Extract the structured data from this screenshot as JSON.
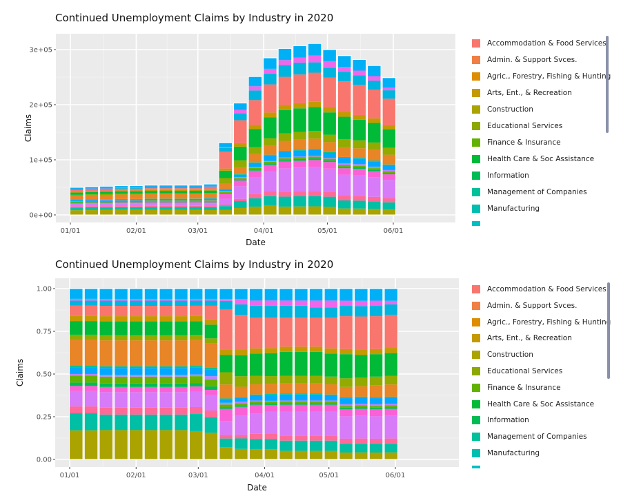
{
  "chart_data": [
    {
      "type": "bar",
      "stacking": "stack",
      "title": "Continued Unemployment Claims by Industry in 2020",
      "xlabel": "Date",
      "ylabel": "Claims",
      "ylim": [
        0,
        325000
      ],
      "yticks": [
        0,
        100000,
        200000,
        300000
      ],
      "ytick_labels": [
        "0e+00",
        "1e+05",
        "2e+05",
        "3e+05"
      ],
      "xticks": [
        "2020-01-01",
        "2020-02-01",
        "2020-03-01",
        "2020-04-01",
        "2020-05-01",
        "2020-06-01"
      ],
      "xtick_labels": [
        "01/01",
        "02/01",
        "03/01",
        "04/01",
        "05/01",
        "06/01"
      ],
      "grid": true,
      "legend_position": "right",
      "totals": [
        50000,
        51000,
        52000,
        53000,
        53000,
        54000,
        54000,
        54000,
        54000,
        56000,
        131000,
        203000,
        251000,
        285000,
        302000,
        307000,
        311000,
        300000,
        289000,
        282000,
        271000,
        249000
      ]
    },
    {
      "type": "bar",
      "stacking": "fill",
      "title": "Continued Unemployment Claims by Industry in 2020",
      "xlabel": "Date",
      "ylabel": "Claims",
      "ylim": [
        0,
        1
      ],
      "yticks": [
        0,
        0.25,
        0.5,
        0.75,
        1
      ],
      "ytick_labels": [
        "0.00",
        "0.25",
        "0.50",
        "0.75",
        "1.00"
      ],
      "xticks": [
        "2020-01-01",
        "2020-02-01",
        "2020-03-01",
        "2020-04-01",
        "2020-05-01",
        "2020-06-01"
      ],
      "xtick_labels": [
        "01/01",
        "02/01",
        "03/01",
        "04/01",
        "05/01",
        "06/01"
      ],
      "grid": true,
      "legend_position": "right"
    }
  ],
  "dates": [
    "2020-01-04",
    "2020-01-11",
    "2020-01-18",
    "2020-01-25",
    "2020-02-01",
    "2020-02-08",
    "2020-02-15",
    "2020-02-22",
    "2020-02-29",
    "2020-03-07",
    "2020-03-14",
    "2020-03-21",
    "2020-03-28",
    "2020-04-04",
    "2020-04-11",
    "2020-04-18",
    "2020-04-25",
    "2020-05-02",
    "2020-05-09",
    "2020-05-16",
    "2020-05-23",
    "2020-05-30"
  ],
  "series_shares": [
    {
      "name": "Construction",
      "color": "#ABA300",
      "values": [
        0.17,
        0.17,
        0.17,
        0.17,
        0.17,
        0.17,
        0.17,
        0.17,
        0.165,
        0.155,
        0.07,
        0.06,
        0.06,
        0.06,
        0.05,
        0.05,
        0.05,
        0.05,
        0.04,
        0.04,
        0.04,
        0.04
      ]
    },
    {
      "name": "Manufacturing",
      "color": "#00BFA5",
      "values": [
        0.1,
        0.1,
        0.09,
        0.09,
        0.09,
        0.09,
        0.09,
        0.09,
        0.1,
        0.09,
        0.05,
        0.06,
        0.06,
        0.06,
        0.06,
        0.06,
        0.06,
        0.06,
        0.05,
        0.05,
        0.05,
        0.05
      ]
    },
    {
      "color": "#FF6A98",
      "values": [
        0.04,
        0.04,
        0.04,
        0.04,
        0.04,
        0.04,
        0.04,
        0.04,
        0.04,
        0.04,
        0.02,
        0.02,
        0.03,
        0.03,
        0.03,
        0.03,
        0.03,
        0.03,
        0.03,
        0.03,
        0.03,
        0.03
      ]
    },
    {
      "color": "#D77BF8",
      "values": [
        0.09,
        0.09,
        0.09,
        0.09,
        0.09,
        0.09,
        0.09,
        0.09,
        0.09,
        0.09,
        0.08,
        0.11,
        0.12,
        0.13,
        0.14,
        0.14,
        0.14,
        0.14,
        0.13,
        0.13,
        0.13,
        0.13
      ]
    },
    {
      "color": "#FB61D7",
      "values": [
        0.03,
        0.03,
        0.03,
        0.03,
        0.03,
        0.03,
        0.03,
        0.03,
        0.03,
        0.03,
        0.07,
        0.05,
        0.05,
        0.04,
        0.04,
        0.04,
        0.04,
        0.04,
        0.04,
        0.04,
        0.04,
        0.04
      ]
    },
    {
      "name": "Information",
      "color": "#00BC56",
      "values": [
        0.02,
        0.02,
        0.02,
        0.02,
        0.02,
        0.02,
        0.02,
        0.02,
        0.02,
        0.02,
        0.01,
        0.01,
        0.01,
        0.01,
        0.01,
        0.01,
        0.01,
        0.01,
        0.01,
        0.01,
        0.01,
        0.01
      ]
    },
    {
      "name": "Finance & Insurance",
      "color": "#64B200",
      "values": [
        0.04,
        0.04,
        0.04,
        0.04,
        0.04,
        0.04,
        0.04,
        0.04,
        0.04,
        0.04,
        0.015,
        0.01,
        0.01,
        0.01,
        0.01,
        0.01,
        0.01,
        0.01,
        0.01,
        0.01,
        0.01,
        0.01
      ]
    },
    {
      "color": "#B983FF",
      "values": [
        0.01,
        0.01,
        0.01,
        0.01,
        0.01,
        0.01,
        0.01,
        0.01,
        0.01,
        0.02,
        0.01,
        0.01,
        0.005,
        0.005,
        0.005,
        0.005,
        0.005,
        0.005,
        0.01,
        0.01,
        0.01,
        0.01
      ]
    },
    {
      "color": "#00A9FF",
      "values": [
        0.04,
        0.04,
        0.04,
        0.04,
        0.04,
        0.04,
        0.04,
        0.04,
        0.04,
        0.04,
        0.02,
        0.02,
        0.03,
        0.035,
        0.035,
        0.035,
        0.035,
        0.03,
        0.035,
        0.035,
        0.035,
        0.035
      ]
    },
    {
      "name": "Management of Companies",
      "color": "#00C19A",
      "values": [
        0.01,
        0.01,
        0.01,
        0.01,
        0.01,
        0.01,
        0.01,
        0.01,
        0.01,
        0.01,
        0.005,
        0.005,
        0.005,
        0.005,
        0.005,
        0.005,
        0.005,
        0.005,
        0.005,
        0.005,
        0.005,
        0.005
      ]
    },
    {
      "name": "Admin. & Support Svces.",
      "color": "#E88526",
      "values": [
        0.15,
        0.15,
        0.15,
        0.15,
        0.15,
        0.15,
        0.15,
        0.15,
        0.15,
        0.14,
        0.08,
        0.06,
        0.06,
        0.06,
        0.06,
        0.06,
        0.06,
        0.06,
        0.06,
        0.06,
        0.07,
        0.07
      ]
    },
    {
      "name": "Educational Services",
      "color": "#93AA00",
      "values": [
        0.03,
        0.03,
        0.03,
        0.03,
        0.03,
        0.03,
        0.03,
        0.03,
        0.03,
        0.03,
        0.07,
        0.06,
        0.05,
        0.045,
        0.045,
        0.045,
        0.045,
        0.045,
        0.05,
        0.05,
        0.05,
        0.05
      ]
    },
    {
      "name": "Health Care & Soc Assistance",
      "color": "#00BA38",
      "values": [
        0.08,
        0.08,
        0.08,
        0.08,
        0.08,
        0.08,
        0.08,
        0.08,
        0.08,
        0.08,
        0.1,
        0.12,
        0.13,
        0.135,
        0.14,
        0.14,
        0.14,
        0.135,
        0.14,
        0.13,
        0.13,
        0.13
      ]
    },
    {
      "name": "Arts, Ent., & Recreation",
      "color": "#C49A00",
      "values": [
        0.03,
        0.03,
        0.03,
        0.03,
        0.03,
        0.03,
        0.03,
        0.03,
        0.03,
        0.03,
        0.03,
        0.03,
        0.03,
        0.03,
        0.03,
        0.03,
        0.03,
        0.03,
        0.03,
        0.03,
        0.03,
        0.03
      ]
    },
    {
      "name": "Accommodation & Food Services",
      "color": "#F8766D",
      "values": [
        0.06,
        0.06,
        0.06,
        0.06,
        0.06,
        0.06,
        0.06,
        0.06,
        0.06,
        0.08,
        0.23,
        0.2,
        0.18,
        0.18,
        0.17,
        0.17,
        0.17,
        0.18,
        0.19,
        0.19,
        0.19,
        0.19
      ]
    },
    {
      "color": "#00B4E0",
      "values": [
        0.03,
        0.03,
        0.03,
        0.03,
        0.03,
        0.03,
        0.03,
        0.03,
        0.03,
        0.03,
        0.05,
        0.06,
        0.07,
        0.07,
        0.07,
        0.07,
        0.06,
        0.06,
        0.06,
        0.06,
        0.06,
        0.06
      ]
    },
    {
      "color": "#EF67EB",
      "values": [
        0.01,
        0.01,
        0.01,
        0.01,
        0.01,
        0.01,
        0.01,
        0.01,
        0.01,
        0.01,
        0.01,
        0.03,
        0.03,
        0.03,
        0.03,
        0.03,
        0.04,
        0.04,
        0.03,
        0.03,
        0.03,
        0.02
      ]
    },
    {
      "color": "#00B0F6",
      "values": [
        0.06,
        0.06,
        0.06,
        0.06,
        0.06,
        0.06,
        0.06,
        0.06,
        0.06,
        0.06,
        0.06,
        0.06,
        0.07,
        0.07,
        0.07,
        0.07,
        0.07,
        0.07,
        0.07,
        0.07,
        0.07,
        0.07
      ]
    }
  ],
  "legend": {
    "items": [
      {
        "label": "Accommodation & Food Services",
        "color": "#F8766D"
      },
      {
        "label": "Admin. & Support Svces.",
        "color": "#EF7F45"
      },
      {
        "label": "Agric., Forestry, Fishing & Hunting",
        "color": "#DE8C00"
      },
      {
        "label": "Arts, Ent., & Recreation",
        "color": "#C49A00"
      },
      {
        "label": "Construction",
        "color": "#ABA300"
      },
      {
        "label": "Educational Services",
        "color": "#8DA800"
      },
      {
        "label": "Finance & Insurance",
        "color": "#64B200"
      },
      {
        "label": "Health Care & Soc Assistance",
        "color": "#00BA38"
      },
      {
        "label": "Information",
        "color": "#00BC56"
      },
      {
        "label": "Management of Companies",
        "color": "#00C19A"
      },
      {
        "label": "Manufacturing",
        "color": "#00BFB0"
      },
      {
        "label": "",
        "color": "#00BFC4"
      }
    ]
  }
}
